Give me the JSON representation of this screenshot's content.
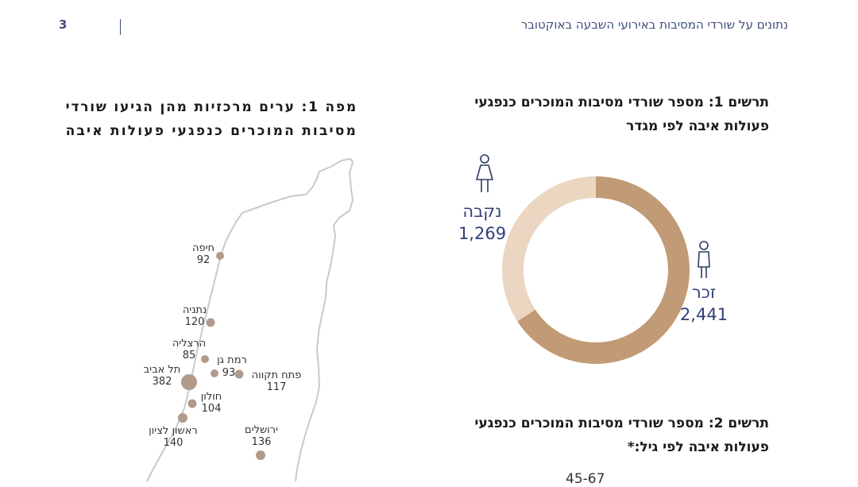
{
  "header": {
    "title": "נתונים על שורדי המסיבות באירועי השבעה באוקטובר",
    "page_number": "3"
  },
  "map": {
    "title_line1": "מפה 1: ערים מרכזיות מהן הגיעו שורדי",
    "title_line2": "מסיבות המוכרים כנפגעי פעולות איבה",
    "marker_color": "#b09a8c",
    "cities": [
      {
        "name": "חיפה",
        "value": "92"
      },
      {
        "name": "נתניה",
        "value": "120"
      },
      {
        "name": "הרצליה",
        "value": "85"
      },
      {
        "name": "רמת גן",
        "value": "93"
      },
      {
        "name": "תל אביב",
        "value": "382"
      },
      {
        "name": "פתח תקווה",
        "value": "117"
      },
      {
        "name": "חולון",
        "value": "104"
      },
      {
        "name": "ראשון לציון",
        "value": "140"
      },
      {
        "name": "ירושלים",
        "value": "136"
      }
    ]
  },
  "chart1": {
    "title_line1": "תרשים 1: מספר שורדי מסיבות המוכרים כנפגעי",
    "title_line2": "פעולות איבה לפי מגדר",
    "chart_data": {
      "type": "pie",
      "style": "donut",
      "series": [
        {
          "name": "זכר",
          "value": 2441,
          "label": "2,441",
          "color": "#c19a76",
          "icon": "male-person-icon"
        },
        {
          "name": "נקבה",
          "value": 1269,
          "label": "1,269",
          "color": "#ead6c1",
          "icon": "female-person-icon"
        }
      ]
    }
  },
  "chart2": {
    "title_line1": "תרשים 2: מספר שורדי מסיבות המוכרים כנפגעי",
    "title_line2": "פעולות איבה לפי גיל:*",
    "visible_value": "45-67"
  }
}
